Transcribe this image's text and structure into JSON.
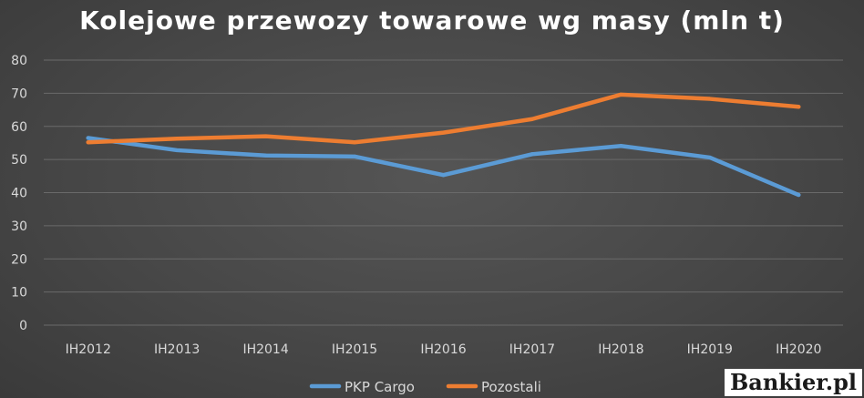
{
  "chart_data": {
    "type": "line",
    "title": "Kolejowe przewozy towarowe wg masy (mln t)",
    "xlabel": "",
    "ylabel": "",
    "categories": [
      "IH2012",
      "IH2013",
      "IH2014",
      "IH2015",
      "IH2016",
      "IH2017",
      "IH2018",
      "IH2019",
      "IH2020"
    ],
    "series": [
      {
        "name": "PKP Cargo",
        "color": "#5b9bd5",
        "values": [
          56.5,
          52.8,
          51.2,
          50.9,
          45.3,
          51.6,
          54.1,
          50.6,
          39.3
        ]
      },
      {
        "name": "Pozostali",
        "color": "#ed7d31",
        "values": [
          55.2,
          56.3,
          57.0,
          55.2,
          58.1,
          62.2,
          69.6,
          68.3,
          65.9
        ]
      }
    ],
    "ylim": [
      0,
      80
    ],
    "yticks": [
      0,
      10,
      20,
      30,
      40,
      50,
      60,
      70,
      80
    ],
    "grid": true,
    "legend_position": "bottom"
  },
  "logo_text": "Bankier.pl"
}
